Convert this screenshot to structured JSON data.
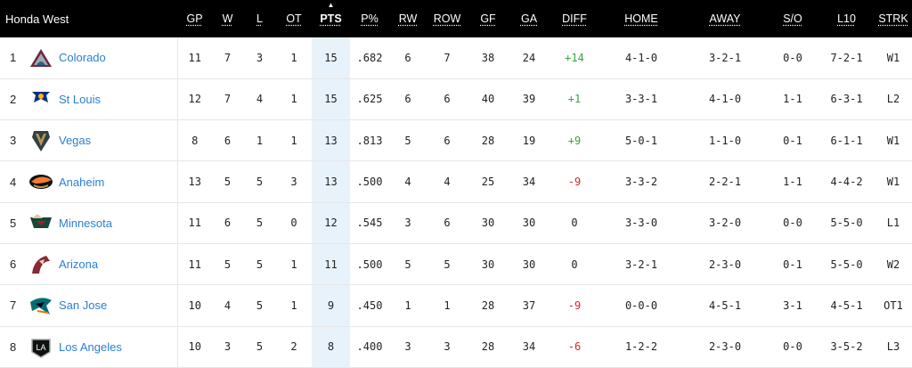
{
  "division": "Honda West",
  "columns": [
    "GP",
    "W",
    "L",
    "OT",
    "PTS",
    "P%",
    "RW",
    "ROW",
    "GF",
    "GA",
    "DIFF",
    "HOME",
    "AWAY",
    "S/O",
    "L10",
    "STRK"
  ],
  "sort_arrow": "▲",
  "colors": {
    "header_bg": "#000000",
    "link": "#2a7fd4",
    "positive": "#3aa53a",
    "negative": "#d9262b",
    "sorted_col_bg": "#e8f2fb"
  },
  "rows": [
    {
      "rank": "1",
      "logo": "colorado-logo-icon",
      "team": "Colorado",
      "gp": "11",
      "w": "7",
      "l": "3",
      "ot": "1",
      "pts": "15",
      "pct": ".682",
      "rw": "6",
      "row": "7",
      "gf": "38",
      "ga": "24",
      "diff": "+14",
      "home": "4-1-0",
      "away": "3-2-1",
      "so": "0-0",
      "l10": "7-2-1",
      "strk": "W1"
    },
    {
      "rank": "2",
      "logo": "st-louis-logo-icon",
      "team": "St Louis",
      "gp": "12",
      "w": "7",
      "l": "4",
      "ot": "1",
      "pts": "15",
      "pct": ".625",
      "rw": "6",
      "row": "6",
      "gf": "40",
      "ga": "39",
      "diff": "+1",
      "home": "3-3-1",
      "away": "4-1-0",
      "so": "1-1",
      "l10": "6-3-1",
      "strk": "L2"
    },
    {
      "rank": "3",
      "logo": "vegas-logo-icon",
      "team": "Vegas",
      "gp": "8",
      "w": "6",
      "l": "1",
      "ot": "1",
      "pts": "13",
      "pct": ".813",
      "rw": "5",
      "row": "6",
      "gf": "28",
      "ga": "19",
      "diff": "+9",
      "home": "5-0-1",
      "away": "1-1-0",
      "so": "0-1",
      "l10": "6-1-1",
      "strk": "W1"
    },
    {
      "rank": "4",
      "logo": "anaheim-logo-icon",
      "team": "Anaheim",
      "gp": "13",
      "w": "5",
      "l": "5",
      "ot": "3",
      "pts": "13",
      "pct": ".500",
      "rw": "4",
      "row": "4",
      "gf": "25",
      "ga": "34",
      "diff": "-9",
      "home": "3-3-2",
      "away": "2-2-1",
      "so": "1-1",
      "l10": "4-4-2",
      "strk": "W1"
    },
    {
      "rank": "5",
      "logo": "minnesota-logo-icon",
      "team": "Minnesota",
      "gp": "11",
      "w": "6",
      "l": "5",
      "ot": "0",
      "pts": "12",
      "pct": ".545",
      "rw": "3",
      "row": "6",
      "gf": "30",
      "ga": "30",
      "diff": "0",
      "home": "3-3-0",
      "away": "3-2-0",
      "so": "0-0",
      "l10": "5-5-0",
      "strk": "L1"
    },
    {
      "rank": "6",
      "logo": "arizona-logo-icon",
      "team": "Arizona",
      "gp": "11",
      "w": "5",
      "l": "5",
      "ot": "1",
      "pts": "11",
      "pct": ".500",
      "rw": "5",
      "row": "5",
      "gf": "30",
      "ga": "30",
      "diff": "0",
      "home": "3-2-1",
      "away": "2-3-0",
      "so": "0-1",
      "l10": "5-5-0",
      "strk": "W2"
    },
    {
      "rank": "7",
      "logo": "san-jose-logo-icon",
      "team": "San Jose",
      "gp": "10",
      "w": "4",
      "l": "5",
      "ot": "1",
      "pts": "9",
      "pct": ".450",
      "rw": "1",
      "row": "1",
      "gf": "28",
      "ga": "37",
      "diff": "-9",
      "home": "0-0-0",
      "away": "4-5-1",
      "so": "3-1",
      "l10": "4-5-1",
      "strk": "OT1"
    },
    {
      "rank": "8",
      "logo": "los-angeles-logo-icon",
      "team": "Los Angeles",
      "gp": "10",
      "w": "3",
      "l": "5",
      "ot": "2",
      "pts": "8",
      "pct": ".400",
      "rw": "3",
      "row": "3",
      "gf": "28",
      "ga": "34",
      "diff": "-6",
      "home": "1-2-2",
      "away": "2-3-0",
      "so": "0-0",
      "l10": "3-5-2",
      "strk": "L3"
    }
  ]
}
